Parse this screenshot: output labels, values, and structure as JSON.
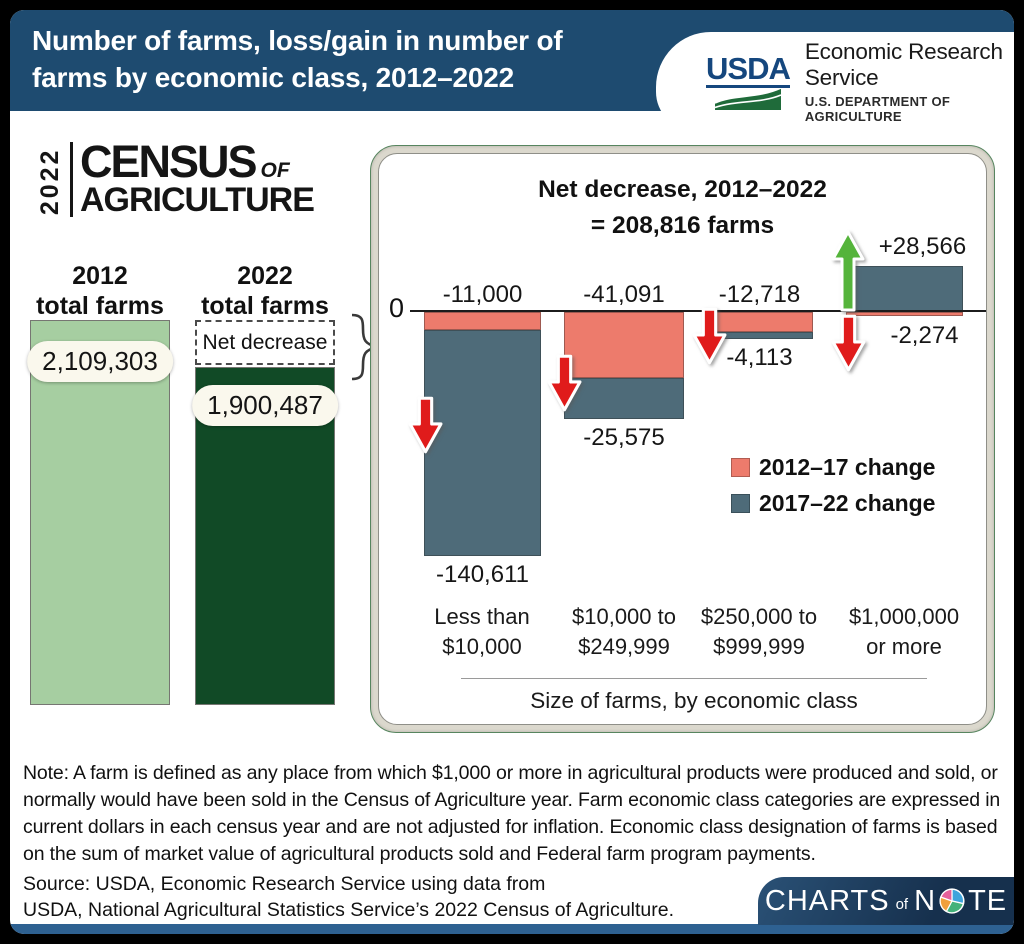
{
  "header": {
    "title_line1": "Number of farms, loss/gain in number of",
    "title_line2": "farms by economic class, 2012–2022",
    "usda": {
      "logo": "USDA",
      "org": "Economic Research Service",
      "dept": "U.S. DEPARTMENT OF AGRICULTURE"
    }
  },
  "census_logo": {
    "year": "2022",
    "line1": "CENSUS",
    "of": "OF",
    "line2": "AGRICULTURE"
  },
  "totals": {
    "col_2012": {
      "label_line1": "2012",
      "label_line2": "total farms",
      "value": "2,109,303"
    },
    "col_2022": {
      "label_line1": "2022",
      "label_line2": "total farms",
      "value": "1,900,487",
      "net_decrease_label": "Net decrease"
    }
  },
  "chart_data": {
    "type": "bar",
    "title_line1": "Net decrease, 2012–2022",
    "title_line2": "= 208,816 farms",
    "net_change": -208816,
    "unit": "farms",
    "zero_label": "0",
    "xlabel": "Size of farms, by economic class",
    "legend_position": "right",
    "ylim": [
      -170000,
      40000
    ],
    "categories": [
      {
        "line1": "Less than",
        "line2": "$10,000"
      },
      {
        "line1": "$10,000 to",
        "line2": "$249,999"
      },
      {
        "line1": "$250,000 to",
        "line2": "$999,999"
      },
      {
        "line1": "$1,000,000",
        "line2": "or more"
      }
    ],
    "series": [
      {
        "name": "2012–17 change",
        "color": "#ED7B6C",
        "values": [
          -11000,
          -41091,
          -12718,
          -2274
        ],
        "value_labels": [
          "-11,000",
          "-41,091",
          "-12,718",
          "-2,274"
        ]
      },
      {
        "name": "2017–22 change",
        "color": "#4E6B79",
        "values": [
          -140611,
          -25575,
          -4113,
          28566
        ],
        "value_labels": [
          "-140,611",
          "-25,575",
          "-4,113",
          "+28,566"
        ]
      }
    ],
    "arrows": [
      {
        "col": 0,
        "dir": "down"
      },
      {
        "col": 1,
        "dir": "down"
      },
      {
        "col": 2,
        "dir": "down"
      },
      {
        "col": 3,
        "dir": "up"
      },
      {
        "col": 3,
        "dir": "down"
      }
    ]
  },
  "colors": {
    "header_blue": "#1E4B70",
    "light_green": "#A6CEA1",
    "dark_green": "#114A26",
    "salmon": "#ED7B6C",
    "slate": "#4E6B79",
    "arrow_red": "#E01B1B",
    "arrow_green": "#55B43B",
    "footer_blue": "#2E6191",
    "charts_note_blue": "#16304D"
  },
  "note": "Note: A farm is defined as any place from which $1,000 or more in agricultural products were produced and sold, or normally would have been sold in the Census of Agriculture year. Farm economic class categories are expressed in current dollars in each census year and are not adjusted for inflation. Economic class designation of farms is based on the sum of market value of agricultural products sold and Federal farm program payments.",
  "source_line1": "Source: USDA, Economic Research Service using data from",
  "source_line2": "USDA, National Agricultural Statistics Service’s 2022 Census of Agriculture.",
  "charts_of_note": {
    "part1": "CHARTS",
    "of": "of",
    "part2": "N",
    "part3": "TE"
  }
}
